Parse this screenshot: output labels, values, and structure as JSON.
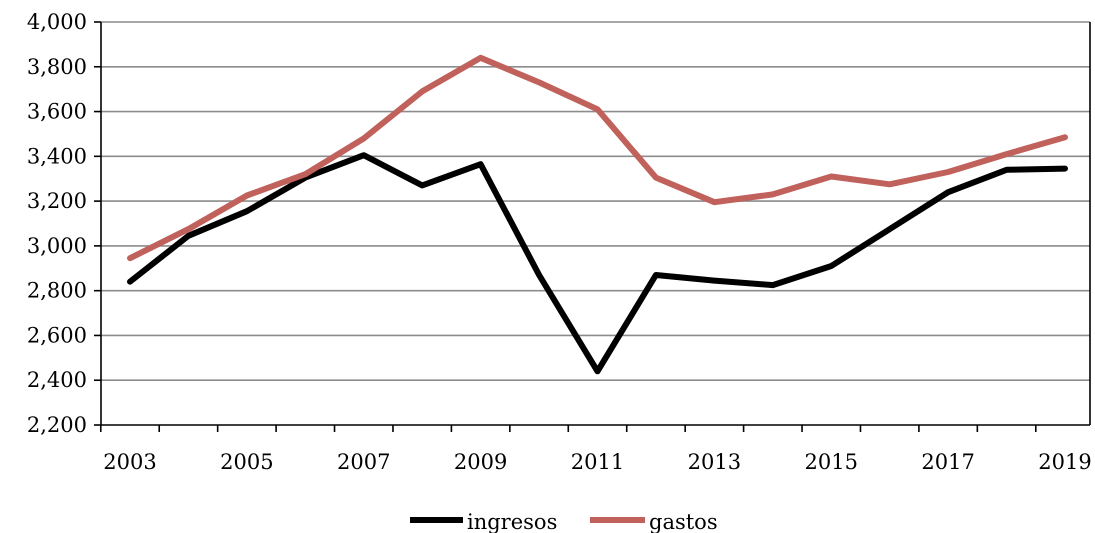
{
  "chart_data": {
    "type": "line",
    "title": "",
    "xlabel": "",
    "ylabel": "",
    "x": [
      2003,
      2004,
      2005,
      2006,
      2007,
      2008,
      2009,
      2010,
      2011,
      2012,
      2013,
      2014,
      2015,
      2016,
      2017,
      2018,
      2019
    ],
    "x_tick_labels": [
      "2003",
      "2005",
      "2007",
      "2009",
      "2011",
      "2013",
      "2015",
      "2017",
      "2019"
    ],
    "y_tick_labels": [
      "2,200",
      "2,400",
      "2,600",
      "2,800",
      "3,000",
      "3,200",
      "3,400",
      "3,600",
      "3,800",
      "4,000"
    ],
    "y_ticks": [
      2200,
      2400,
      2600,
      2800,
      3000,
      3200,
      3400,
      3600,
      3800,
      4000
    ],
    "ylim": [
      2200,
      4000
    ],
    "grid": true,
    "legend_position": "bottom",
    "series": [
      {
        "name": "ingresos",
        "color": "#000000",
        "values": [
          2840,
          3045,
          3155,
          3305,
          3405,
          3270,
          3365,
          2870,
          2440,
          2870,
          2845,
          2825,
          2910,
          3075,
          3240,
          3340,
          3345
        ]
      },
      {
        "name": "gastos",
        "color": "#c0615b",
        "values": [
          2945,
          3075,
          3225,
          3320,
          3480,
          3690,
          3840,
          3730,
          3610,
          3305,
          3195,
          3230,
          3310,
          3275,
          3330,
          3410,
          3485
        ]
      }
    ]
  }
}
